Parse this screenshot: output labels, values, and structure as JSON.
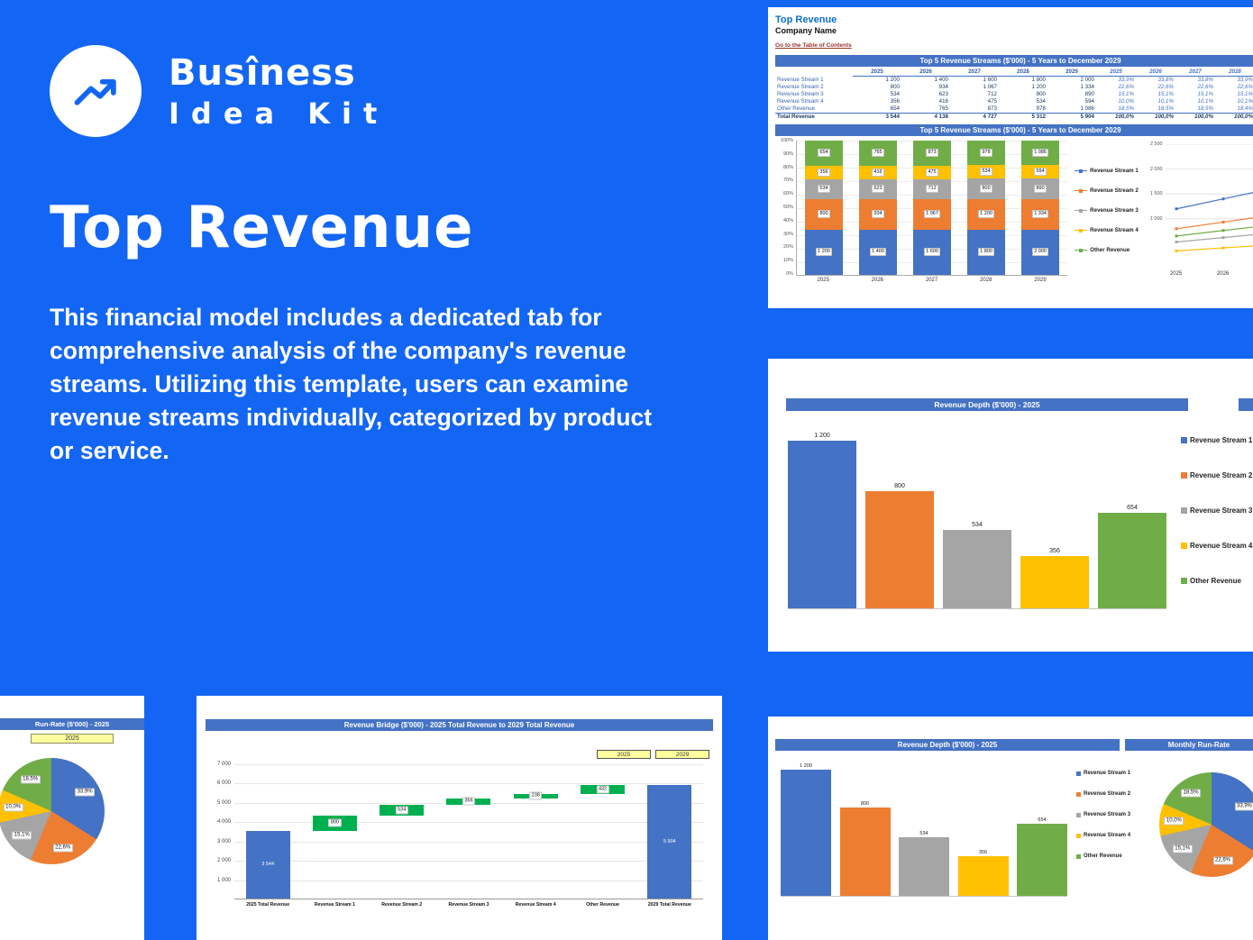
{
  "brand": {
    "line1": "Busîness",
    "line2": "Idea Kit"
  },
  "hero": {
    "title": "Top Revenue",
    "description": "This financial model includes a dedicated tab for comprehensive analysis of the company's revenue streams. Utilizing this template, users can examine revenue streams individually, categorized by product or service."
  },
  "colors": {
    "background": "#1366F4",
    "header_bar": "#4472C4",
    "stream1": "#4472C4",
    "stream2": "#ED7D31",
    "stream3": "#A5A5A5",
    "stream4": "#FFC000",
    "other_revenue": "#70AD47",
    "waterfall_delta": "#00B050",
    "year_cell_fill": "#FFFF9E"
  },
  "panels": {
    "excel": {
      "sheet_title": "Top Revenue",
      "company_name": "Company Name",
      "toc_link": "Go to the Table of Contents",
      "table_title": "Top 5 Revenue Streams ($'000) - 5 Years to December 2029",
      "chart_title": "Top 5 Revenue Streams ($'000) - 5 Years to December 2029",
      "table": {
        "year_columns": [
          "2025",
          "2026",
          "2027",
          "2028",
          "2029"
        ],
        "pct_year_columns": [
          "2025",
          "2026",
          "2027",
          "2028"
        ],
        "rows": [
          {
            "label": "Revenue Stream 1",
            "values": [
              "1 200",
              "1 400",
              "1 600",
              "1 800",
              "2 000"
            ],
            "pcts": [
              "33,9%",
              "33,8%",
              "33,8%",
              "33,9%"
            ]
          },
          {
            "label": "Revenue Stream 2",
            "values": [
              "800",
              "934",
              "1 067",
              "1 200",
              "1 334"
            ],
            "pcts": [
              "22,6%",
              "22,6%",
              "22,6%",
              "22,6%"
            ]
          },
          {
            "label": "Revenue Stream 3",
            "values": [
              "534",
              "623",
              "712",
              "800",
              "890"
            ],
            "pcts": [
              "15,1%",
              "15,1%",
              "15,1%",
              "15,1%"
            ]
          },
          {
            "label": "Revenue Stream 4",
            "values": [
              "356",
              "416",
              "475",
              "534",
              "594"
            ],
            "pcts": [
              "10,0%",
              "10,1%",
              "10,1%",
              "10,1%"
            ]
          },
          {
            "label": "Other Revenue",
            "values": [
              "654",
              "765",
              "873",
              "978",
              "1 086"
            ],
            "pcts": [
              "18,5%",
              "18,5%",
              "18,5%",
              "18,4%"
            ]
          }
        ],
        "total_row": {
          "label": "Total Revenue",
          "values": [
            "3 544",
            "4 138",
            "4 727",
            "5 312",
            "5 904"
          ],
          "pcts": [
            "100,0%",
            "100,0%",
            "100,0%",
            "100,0%"
          ]
        }
      }
    },
    "depth": {
      "title": "Revenue Depth ($'000) - 2025"
    },
    "pie_left": {
      "title": "Run-Rate ($'000) - 2025",
      "year_cell": "2025"
    },
    "bridge": {
      "title": "Revenue Bridge ($'000) - 2025 Total Revenue to 2029 Total Revenue",
      "year_cells": [
        "2025",
        "2029"
      ]
    },
    "bottom_right": {
      "left_title": "Revenue Depth ($'000) - 2025",
      "right_title": "Monthly Run-Rate"
    }
  },
  "chart_data": [
    {
      "id": "stacked_streams",
      "type": "bar",
      "variant": "stacked-100",
      "title": "Top 5 Revenue Streams ($'000) - 5 Years to December 2029",
      "categories": [
        "2025",
        "2026",
        "2027",
        "2028",
        "2029"
      ],
      "series": [
        {
          "name": "Revenue Stream 1",
          "color": "#4472C4",
          "values": [
            1200,
            1400,
            1600,
            1800,
            2000
          ],
          "labels": [
            "1 200",
            "1 400",
            "1 600",
            "1 800",
            "2 000"
          ]
        },
        {
          "name": "Revenue Stream 2",
          "color": "#ED7D31",
          "values": [
            800,
            934,
            1067,
            1200,
            1334
          ],
          "labels": [
            "800",
            "934",
            "1 067",
            "1 200",
            "1 334"
          ]
        },
        {
          "name": "Revenue Stream 3",
          "color": "#A5A5A5",
          "values": [
            534,
            623,
            712,
            800,
            890
          ],
          "labels": [
            "534",
            "623",
            "712",
            "800",
            "890"
          ]
        },
        {
          "name": "Revenue Stream 4",
          "color": "#FFC000",
          "values": [
            356,
            416,
            475,
            534,
            594
          ],
          "labels": [
            "356",
            "416",
            "475",
            "534",
            "594"
          ]
        },
        {
          "name": "Other Revenue",
          "color": "#70AD47",
          "values": [
            654,
            765,
            873,
            978,
            1086
          ],
          "labels": [
            "654",
            "765",
            "873",
            "978",
            "1 086"
          ]
        }
      ],
      "y_ticks": [
        "100%",
        "90%",
        "80%",
        "70%",
        "60%",
        "50%",
        "40%",
        "30%",
        "20%",
        "10%",
        "0%"
      ],
      "legend": [
        "Revenue Stream 1",
        "Revenue Stream 2",
        "Revenue Stream 3",
        "Revenue Stream 4",
        "Other Revenue"
      ],
      "legend_position": "right"
    },
    {
      "id": "streams_lines",
      "type": "line",
      "x_visible": [
        "2025",
        "2026"
      ],
      "ymax": 2500,
      "y_ticks": [
        {
          "v": 2500,
          "label": "2 500"
        },
        {
          "v": 2000,
          "label": "2 000"
        },
        {
          "v": 1500,
          "label": "1 500"
        },
        {
          "v": 1000,
          "label": "1 000"
        }
      ],
      "series": [
        {
          "name": "Revenue Stream 1",
          "color": "#4472C4",
          "values": [
            1200,
            1400,
            1600
          ]
        },
        {
          "name": "Revenue Stream 2",
          "color": "#ED7D31",
          "values": [
            800,
            934,
            1067
          ]
        },
        {
          "name": "Revenue Stream 3",
          "color": "#A5A5A5",
          "values": [
            534,
            623,
            712
          ]
        },
        {
          "name": "Revenue Stream 4",
          "color": "#FFC000",
          "values": [
            356,
            416,
            475
          ]
        },
        {
          "name": "Other Revenue",
          "color": "#70AD47",
          "values": [
            654,
            765,
            873
          ]
        }
      ]
    },
    {
      "id": "depth_2025",
      "type": "bar",
      "title": "Revenue Depth ($'000) - 2025",
      "categories": [
        "Revenue Stream 1",
        "Revenue Stream 2",
        "Revenue Stream 3",
        "Revenue Stream 4",
        "Other Revenue"
      ],
      "values": [
        1200,
        800,
        534,
        356,
        654
      ],
      "labels": [
        "1 200",
        "800",
        "534",
        "356",
        "654"
      ],
      "colors": [
        "#4472C4",
        "#ED7D31",
        "#A5A5A5",
        "#FFC000",
        "#70AD47"
      ],
      "ymax": 1200,
      "legend": [
        "Revenue Stream 1",
        "Revenue Stream 2",
        "Revenue Stream 3",
        "Revenue Stream 4",
        "Other Revenue"
      ],
      "legend_position": "right"
    },
    {
      "id": "runrate_pie",
      "type": "pie",
      "title": "Run-Rate ($'000) - 2025",
      "labels": [
        "Revenue Stream 1",
        "Revenue Stream 2",
        "Revenue Stream 3",
        "Revenue Stream 4",
        "Other Revenue"
      ],
      "values": [
        33.9,
        22.6,
        15.1,
        10.0,
        18.5
      ],
      "display": [
        "33,9%",
        "22,6%",
        "15,1%",
        "10,0%",
        "18,5%"
      ],
      "colors": [
        "#4472C4",
        "#ED7D31",
        "#A5A5A5",
        "#FFC000",
        "#70AD47"
      ]
    },
    {
      "id": "revenue_bridge",
      "type": "bar",
      "variant": "waterfall",
      "title": "Revenue Bridge ($'000) - 2025 Total Revenue to 2029 Total Revenue",
      "categories": [
        "2025 Total Revenue",
        "Revenue Stream 1",
        "Revenue Stream 2",
        "Revenue Stream 3",
        "Revenue Stream 4",
        "Other Revenue",
        "2029 Total Revenue"
      ],
      "columns": [
        {
          "start": 0,
          "value": 3544,
          "display": "3 544",
          "kind": "total"
        },
        {
          "start": 3544,
          "value": 800,
          "display": "800",
          "kind": "delta"
        },
        {
          "start": 4344,
          "value": 534,
          "display": "534",
          "kind": "delta"
        },
        {
          "start": 4878,
          "value": 356,
          "display": "356",
          "kind": "delta"
        },
        {
          "start": 5234,
          "value": 238,
          "display": "238",
          "kind": "delta"
        },
        {
          "start": 5472,
          "value": 432,
          "display": "432",
          "kind": "delta"
        },
        {
          "start": 0,
          "value": 5904,
          "display": "5 904",
          "kind": "total"
        }
      ],
      "total_color": "#4472C4",
      "delta_color": "#00B050",
      "ymax": 7000,
      "y_ticks": [
        {
          "v": 7000,
          "label": "7 000"
        },
        {
          "v": 6000,
          "label": "6 000"
        },
        {
          "v": 5000,
          "label": "5 000"
        },
        {
          "v": 4000,
          "label": "4 000"
        },
        {
          "v": 3000,
          "label": "3 000"
        },
        {
          "v": 2000,
          "label": "2 000"
        },
        {
          "v": 1000,
          "label": "1 000"
        }
      ]
    },
    {
      "id": "monthly_runrate_pie",
      "type": "pie",
      "title": "Monthly Run-Rate",
      "labels": [
        "Revenue Stream 1",
        "Revenue Stream 2",
        "Revenue Stream 3",
        "Revenue Stream 4",
        "Other Revenue"
      ],
      "values": [
        33.9,
        22.6,
        15.1,
        10.0,
        18.5
      ],
      "display": [
        "33,9%",
        "22,6%",
        "15,1%",
        "10,0%",
        "18,5%"
      ],
      "colors": [
        "#4472C4",
        "#ED7D31",
        "#A5A5A5",
        "#FFC000",
        "#70AD47"
      ]
    }
  ]
}
